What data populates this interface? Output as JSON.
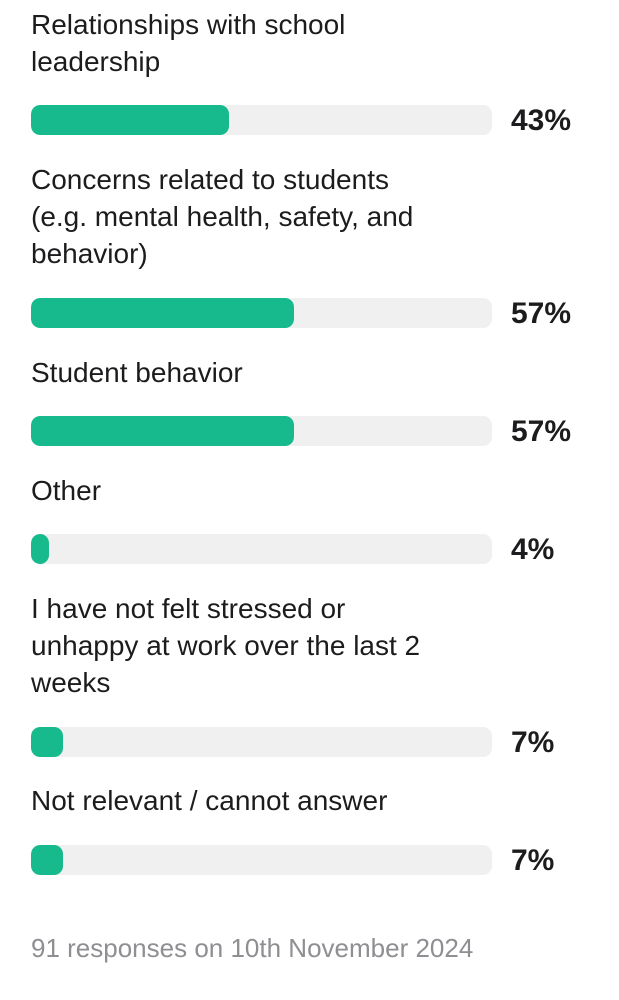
{
  "chart_data": {
    "type": "bar",
    "orientation": "horizontal",
    "categories": [
      "Relationships with school\nleadership",
      "Concerns related to students\n(e.g. mental health, safety, and\nbehavior)",
      "Student behavior",
      "Other",
      "I have not felt stressed or\nunhappy at work over the last 2\nweeks",
      "Not relevant / cannot answer"
    ],
    "values": [
      43,
      57,
      57,
      4,
      7,
      7
    ],
    "value_labels": [
      "43%",
      "57%",
      "57%",
      "4%",
      "7%",
      "7%"
    ],
    "unit": "%",
    "xlim": [
      0,
      100
    ],
    "grid": false,
    "legend": "none"
  },
  "footer": {
    "responses_text": "91 responses on 10th November 2024"
  },
  "colors": {
    "bar_fill": "#16ba8c",
    "bar_track": "#f0f0f0",
    "label_text": "#1c1c1e",
    "footer_text": "#8e8e93"
  }
}
